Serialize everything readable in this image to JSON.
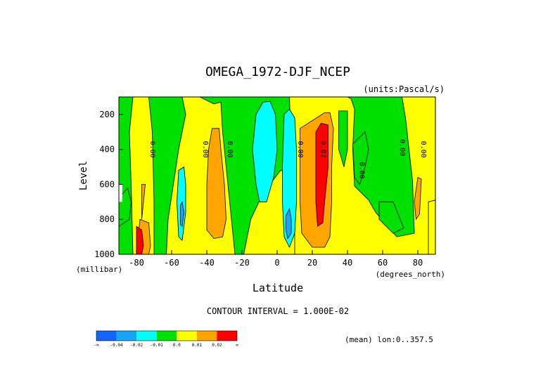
{
  "chart_data": {
    "type": "heatmap",
    "title": "OMEGA_1972-DJF_NCEP",
    "units": "(units:Pascal/s)",
    "xlabel": "Latitude",
    "x_units": "(degrees_north)",
    "ylabel": "Level",
    "y_units": "(millibar)",
    "xlim": [
      -90,
      90
    ],
    "ylim": [
      1000,
      100
    ],
    "x_ticks": [
      "-80",
      "-60",
      "-40",
      "-20",
      "0",
      "20",
      "40",
      "60",
      "80"
    ],
    "x_tick_values": [
      -80,
      -60,
      -40,
      -20,
      0,
      20,
      40,
      60,
      80
    ],
    "y_ticks": [
      "200",
      "400",
      "600",
      "800",
      "1000"
    ],
    "y_tick_values": [
      200,
      400,
      600,
      800,
      1000
    ],
    "contour_interval_text": "CONTOUR INTERVAL = 1.000E-02",
    "mean_text": "(mean) lon:0..357.5",
    "contour_labels": [
      {
        "text": "0.00",
        "lat": -72,
        "lev": 400
      },
      {
        "text": "0.00",
        "lat": -42,
        "lev": 400
      },
      {
        "text": "0.00",
        "lat": -28,
        "lev": 400
      },
      {
        "text": "0.00",
        "lat": 12,
        "lev": 400
      },
      {
        "text": "0.02",
        "lat": 25,
        "lev": 400
      },
      {
        "text": "0.00",
        "lat": 47,
        "lev": 520
      },
      {
        "text": "0.00",
        "lat": 70,
        "lev": 390
      },
      {
        "text": "0.00",
        "lat": 82,
        "lev": 400
      }
    ],
    "colorbar": {
      "labels": [
        "-∞",
        "-0.04",
        "-0.02",
        "-0.01",
        "0.0",
        "0.01",
        "0.02",
        "∞"
      ],
      "colors": [
        "#1464ff",
        "#19a5f5",
        "#00ffff",
        "#00e100",
        "#ffff00",
        "#ffa500",
        "#ff0000"
      ]
    },
    "background_color": "#00e100",
    "regions": [
      {
        "value": "0.00 to 0.01",
        "color": "#ffff00",
        "points": [
          [
            -82,
            100
          ],
          [
            -73,
            100
          ],
          [
            -71,
            300
          ],
          [
            -70,
            700
          ],
          [
            -70,
            1000
          ],
          [
            -82,
            1000
          ],
          [
            -83,
            600
          ],
          [
            -84,
            300
          ]
        ]
      },
      {
        "value": "0.00 to 0.01",
        "color": "#ffff00",
        "points": [
          [
            -54,
            100
          ],
          [
            -44,
            100
          ],
          [
            -36,
            140
          ],
          [
            -32,
            130
          ],
          [
            -31,
            300
          ],
          [
            -28,
            600
          ],
          [
            -25,
            900
          ],
          [
            -24,
            1000
          ],
          [
            -63,
            1000
          ],
          [
            -62,
            800
          ],
          [
            -59,
            600
          ],
          [
            -56,
            400
          ],
          [
            -52,
            200
          ]
        ]
      },
      {
        "value": "0.00 to 0.01",
        "color": "#ffff00",
        "points": [
          [
            -15,
            800
          ],
          [
            -8,
            650
          ],
          [
            2,
            520
          ],
          [
            6,
            530
          ],
          [
            9,
            640
          ],
          [
            12,
            830
          ],
          [
            16,
            1000
          ],
          [
            -19,
            1000
          ]
        ]
      },
      {
        "value": "0.00 to 0.01",
        "color": "#ffff00",
        "points": [
          [
            7,
            100
          ],
          [
            40,
            100
          ],
          [
            42,
            110
          ],
          [
            44,
            170
          ],
          [
            43,
            400
          ],
          [
            44,
            610
          ],
          [
            52,
            690
          ],
          [
            56,
            760
          ],
          [
            62,
            830
          ],
          [
            68,
            900
          ],
          [
            78,
            880
          ],
          [
            77,
            580
          ],
          [
            73,
            220
          ],
          [
            71,
            100
          ],
          [
            90,
            100
          ],
          [
            90,
            1000
          ],
          [
            10,
            1000
          ],
          [
            10,
            880
          ],
          [
            8,
            400
          ]
        ]
      },
      {
        "value": "-0.01 to 0.00",
        "color": "#00e100",
        "points": [
          [
            35,
            180
          ],
          [
            40,
            180
          ],
          [
            40,
            400
          ],
          [
            38,
            500
          ],
          [
            35,
            400
          ]
        ]
      },
      {
        "value": "-0.01 to 0.00",
        "color": "#00e100",
        "points": [
          [
            43,
            370
          ],
          [
            50,
            300
          ],
          [
            52,
            400
          ],
          [
            50,
            500
          ],
          [
            47,
            600
          ],
          [
            44,
            560
          ]
        ]
      },
      {
        "value": "-0.01 to 0.00",
        "color": "#00e100",
        "points": [
          [
            58,
            700
          ],
          [
            66,
            700
          ],
          [
            72,
            850
          ],
          [
            66,
            880
          ],
          [
            58,
            800
          ]
        ]
      },
      {
        "value": "0.00 to 0.01",
        "color": "#ffff00",
        "points": [
          [
            86,
            700
          ],
          [
            90,
            690
          ],
          [
            90,
            1000
          ],
          [
            86,
            1000
          ]
        ]
      },
      {
        "value": "0.01 to 0.02",
        "color": "#ffa500",
        "points": [
          [
            -77,
            600
          ],
          [
            -75,
            600
          ],
          [
            -76,
            700
          ],
          [
            -77,
            800
          ]
        ]
      },
      {
        "value": "0.01 to 0.02",
        "color": "#ffa500",
        "points": [
          [
            -78,
            800
          ],
          [
            -73,
            820
          ],
          [
            -72,
            950
          ],
          [
            -73,
            1000
          ],
          [
            -79,
            1000
          ],
          [
            -79,
            900
          ]
        ]
      },
      {
        "value": "0.01 to 0.02",
        "color": "#ffa500",
        "points": [
          [
            -37,
            280
          ],
          [
            -33,
            280
          ],
          [
            -32,
            400
          ],
          [
            -30,
            600
          ],
          [
            -29,
            800
          ],
          [
            -31,
            900
          ],
          [
            -36,
            910
          ],
          [
            -40,
            860
          ],
          [
            -40,
            600
          ],
          [
            -39,
            400
          ]
        ]
      },
      {
        "value": "0.01 to 0.02",
        "color": "#ffa500",
        "points": [
          [
            13,
            280
          ],
          [
            27,
            190
          ],
          [
            30,
            190
          ],
          [
            32,
            280
          ],
          [
            31,
            500
          ],
          [
            31,
            700
          ],
          [
            30,
            900
          ],
          [
            27,
            960
          ],
          [
            20,
            960
          ],
          [
            14,
            880
          ],
          [
            13,
            700
          ],
          [
            13,
            500
          ]
        ]
      },
      {
        "value": "0.01 to 0.02",
        "color": "#ffa500",
        "points": [
          [
            80,
            560
          ],
          [
            82,
            570
          ],
          [
            81,
            770
          ],
          [
            79,
            800
          ],
          [
            78,
            700
          ]
        ]
      },
      {
        "value": "0.02 to ∞",
        "color": "#ff0000",
        "points": [
          [
            22,
            300
          ],
          [
            25,
            250
          ],
          [
            29,
            260
          ],
          [
            29,
            500
          ],
          [
            27,
            700
          ],
          [
            26,
            820
          ],
          [
            23,
            840
          ],
          [
            22,
            700
          ],
          [
            22,
            500
          ]
        ]
      },
      {
        "value": "0.02 to ∞",
        "color": "#ff0000",
        "points": [
          [
            -80,
            840
          ],
          [
            -77,
            860
          ],
          [
            -76,
            950
          ],
          [
            -77,
            1000
          ],
          [
            -80,
            1000
          ]
        ]
      },
      {
        "value": "-0.02 to -0.01",
        "color": "#00ffff",
        "points": [
          [
            -56,
            520
          ],
          [
            -53,
            500
          ],
          [
            -52,
            600
          ],
          [
            -52,
            760
          ],
          [
            -54,
            920
          ],
          [
            -56,
            900
          ],
          [
            -57,
            700
          ]
        ]
      },
      {
        "value": "-0.02 to -0.01",
        "color": "#00ffff",
        "points": [
          [
            -12,
            200
          ],
          [
            -8,
            130
          ],
          [
            -4,
            125
          ],
          [
            -1,
            200
          ],
          [
            0,
            400
          ],
          [
            -2,
            560
          ],
          [
            -6,
            700
          ],
          [
            -10,
            700
          ],
          [
            -12,
            600
          ],
          [
            -14,
            400
          ]
        ]
      },
      {
        "value": "-0.02 to -0.01",
        "color": "#00ffff",
        "points": [
          [
            4,
            200
          ],
          [
            7,
            170
          ],
          [
            10,
            220
          ],
          [
            11,
            400
          ],
          [
            11,
            700
          ],
          [
            10,
            880
          ],
          [
            7,
            960
          ],
          [
            4,
            900
          ],
          [
            3,
            700
          ],
          [
            3,
            500
          ]
        ]
      },
      {
        "value": "-0.04 to -0.02",
        "color": "#19a5f5",
        "points": [
          [
            -55,
            720
          ],
          [
            -54,
            700
          ],
          [
            -53,
            760
          ],
          [
            -54,
            840
          ],
          [
            -55,
            830
          ]
        ]
      },
      {
        "value": "-0.04 to -0.02",
        "color": "#19a5f5",
        "points": [
          [
            5,
            780
          ],
          [
            7,
            740
          ],
          [
            8,
            800
          ],
          [
            8,
            880
          ],
          [
            6,
            910
          ],
          [
            5,
            860
          ]
        ]
      },
      {
        "value": "-0.01 to 0.00",
        "color": "#00e100",
        "points": [
          [
            -90,
            680
          ],
          [
            -85,
            620
          ],
          [
            -83,
            700
          ],
          [
            -84,
            800
          ],
          [
            -90,
            840
          ]
        ]
      }
    ],
    "missing_region": {
      "color": "#ffffff",
      "points": [
        [
          -90,
          600
        ],
        [
          -88,
          600
        ],
        [
          -88,
          700
        ],
        [
          -90,
          700
        ]
      ]
    }
  }
}
